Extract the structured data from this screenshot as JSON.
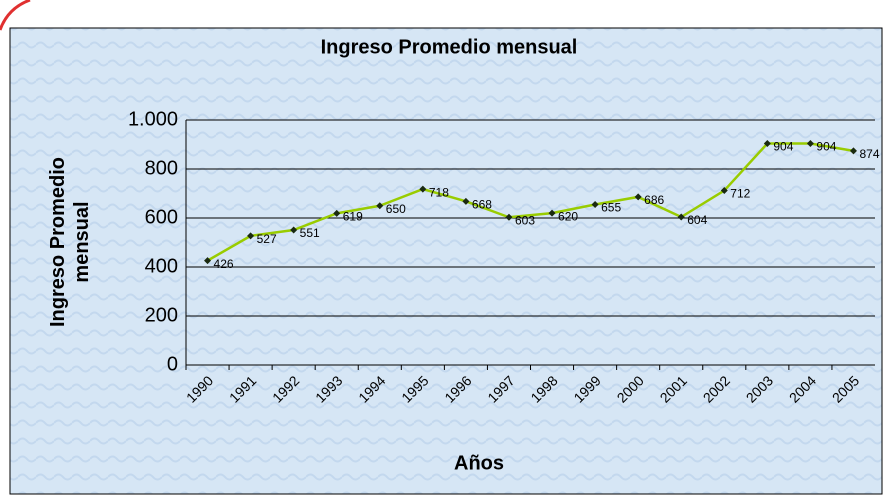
{
  "chart_data": {
    "type": "line",
    "title": "Ingreso Promedio mensual",
    "xlabel": "Años",
    "ylabel": "Ingreso Promedio mensual",
    "categories": [
      "1990",
      "1991",
      "1992",
      "1993",
      "1994",
      "1995",
      "1996",
      "1997",
      "1998",
      "1999",
      "2000",
      "2001",
      "2002",
      "2003",
      "2004",
      "2005"
    ],
    "series": [
      {
        "name": "Ingreso Promedio mensual",
        "color": "#99cc00",
        "values": [
          426,
          527,
          551,
          619,
          650,
          718,
          668,
          603,
          620,
          655,
          686,
          604,
          712,
          904,
          904,
          874
        ]
      }
    ],
    "ylim": [
      0,
      1000
    ],
    "yticks": [
      0,
      200,
      400,
      600,
      800,
      {
        "value": 1000,
        "label": "1.000"
      }
    ],
    "grid": true
  }
}
